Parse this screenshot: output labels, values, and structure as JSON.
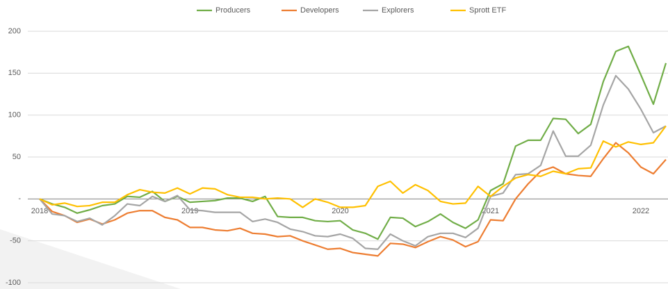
{
  "chart_data": {
    "type": "line",
    "categories": [
      "2018",
      null,
      null,
      null,
      null,
      null,
      null,
      null,
      null,
      null,
      null,
      null,
      "2019",
      null,
      null,
      null,
      null,
      null,
      null,
      null,
      null,
      null,
      null,
      null,
      "2020",
      null,
      null,
      null,
      null,
      null,
      null,
      null,
      null,
      null,
      null,
      null,
      "2021",
      null,
      null,
      null,
      null,
      null,
      null,
      null,
      null,
      null,
      null,
      null,
      "2022",
      null,
      null
    ],
    "series": [
      {
        "name": "Producers",
        "color": "#70ad47",
        "values": [
          0,
          -6,
          -10,
          -17,
          -13,
          -8,
          -6,
          3,
          2,
          9,
          -3,
          3,
          -4,
          -3,
          -2,
          1,
          1,
          -3,
          3,
          -21,
          -22,
          -22,
          -26,
          -27,
          -26,
          -37,
          -41,
          -48,
          -22,
          -23,
          -33,
          -27,
          -18,
          -28,
          -35,
          -25,
          10,
          18,
          63,
          70,
          70,
          96,
          95,
          78,
          89,
          140,
          176,
          182,
          148,
          113,
          162
        ]
      },
      {
        "name": "Developers",
        "color": "#ed7d31",
        "values": [
          0,
          -15,
          -20,
          -28,
          -24,
          -30,
          -25,
          -17,
          -14,
          -14,
          -22,
          -25,
          -34,
          -34,
          -37,
          -38,
          -35,
          -41,
          -42,
          -45,
          -44,
          -50,
          -55,
          -60,
          -59,
          -64,
          -66,
          -68,
          -53,
          -54,
          -58,
          -51,
          -45,
          -49,
          -57,
          -51,
          -25,
          -26,
          0,
          18,
          33,
          38,
          30,
          28,
          27,
          48,
          67,
          55,
          38,
          30,
          47
        ]
      },
      {
        "name": "Explorers",
        "color": "#a5a5a5",
        "values": [
          0,
          -18,
          -20,
          -27,
          -23,
          -31,
          -20,
          -6,
          -8,
          3,
          -3,
          4,
          -13,
          -14,
          -16,
          -16,
          -16,
          -27,
          -24,
          -28,
          -36,
          -39,
          -44,
          -45,
          -42,
          -47,
          -59,
          -60,
          -42,
          -50,
          -56,
          -45,
          -41,
          -41,
          -46,
          -35,
          3,
          7,
          29,
          30,
          40,
          81,
          51,
          51,
          64,
          112,
          147,
          131,
          107,
          79,
          87
        ]
      },
      {
        "name": "Sprott ETF",
        "color": "#ffc000",
        "values": [
          0,
          -7,
          -5,
          -9,
          -8,
          -4,
          -4,
          5,
          11,
          8,
          7,
          13,
          6,
          13,
          12,
          5,
          2,
          2,
          0,
          1,
          0,
          -10,
          0,
          -4,
          -10,
          -10,
          -8,
          15,
          21,
          7,
          17,
          10,
          -3,
          -6,
          -5,
          15,
          3,
          15,
          25,
          29,
          27,
          33,
          30,
          36,
          37,
          69,
          62,
          68,
          65,
          67,
          87
        ]
      }
    ],
    "ylim": [
      -100,
      200
    ],
    "yticks": [
      -100,
      -50,
      {
        "value": 0,
        "label": "-"
      },
      50,
      100,
      150,
      200
    ],
    "grid": true
  }
}
